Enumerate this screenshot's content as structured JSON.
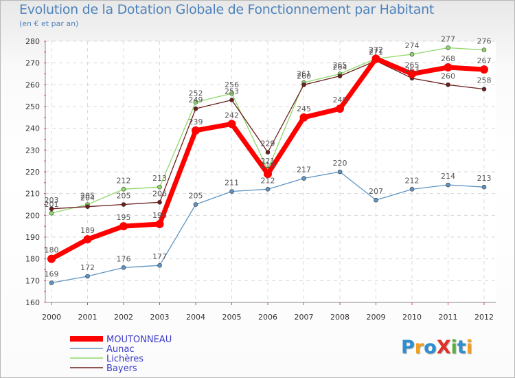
{
  "title": "Evolution de la Dotation Globale de Fonctionnement par Habitant",
  "subtitle": "(en € et par an)",
  "logo": {
    "text": "ProXiti",
    "letters": [
      "P",
      "r",
      "o",
      "X",
      "i",
      "t",
      "i"
    ],
    "colors": [
      "#2d8fd0",
      "#f0a020",
      "#2d8fd0",
      "#e03028",
      "#56b03a",
      "#2d8fd0",
      "#f0a020"
    ]
  },
  "chart_data": {
    "type": "line",
    "title": "Evolution de la Dotation Globale de Fonctionnement par Habitant",
    "ylabel": "(en € et par an)",
    "xlabel": "",
    "x": [
      "2000",
      "2001",
      "2002",
      "2003",
      "2004",
      "2005",
      "2006",
      "2007",
      "2008",
      "2009",
      "2010",
      "2011",
      "2012"
    ],
    "ylim": [
      160,
      280
    ],
    "yticks": [
      160,
      170,
      180,
      190,
      200,
      210,
      220,
      230,
      240,
      250,
      260,
      270,
      280
    ],
    "grid": true,
    "legend_position": "bottom-left",
    "series": [
      {
        "name": "MOUTONNEAU",
        "color": "#ff0000",
        "values": [
          180,
          189,
          195,
          196,
          239,
          242,
          219,
          245,
          249,
          272,
          265,
          268,
          267
        ],
        "labels": [
          "180",
          "189",
          "195",
          "196",
          "239",
          "242",
          "219",
          "245",
          "249",
          "272",
          "265",
          "268",
          "267"
        ]
      },
      {
        "name": "Aunac",
        "color": "#5f94c2",
        "values": [
          169,
          172,
          176,
          177,
          205,
          211,
          212,
          217,
          220,
          207,
          212,
          214,
          213
        ],
        "labels": [
          "169",
          "172",
          "176",
          "177",
          "205",
          "211",
          "212",
          "217",
          "220",
          "207",
          "212",
          "214",
          "213"
        ]
      },
      {
        "name": "Lichères",
        "color": "#8fd86a",
        "values": [
          201,
          205,
          212,
          213,
          252,
          256,
          221,
          261,
          265,
          272,
          274,
          277,
          276
        ],
        "labels": [
          "201",
          "205",
          "212",
          "213",
          "252",
          "256",
          "221",
          "261",
          "265",
          "272",
          "274",
          "277",
          "276"
        ]
      },
      {
        "name": "Bayers",
        "color": "#6b1e1e",
        "values": [
          203,
          204,
          205,
          206,
          249,
          253,
          229,
          260,
          264,
          271,
          263,
          260,
          258
        ],
        "labels": [
          "203",
          "204",
          "205",
          "206",
          "249",
          "253",
          "229",
          "260",
          "264",
          "271",
          "263",
          "260",
          "258"
        ]
      }
    ]
  }
}
